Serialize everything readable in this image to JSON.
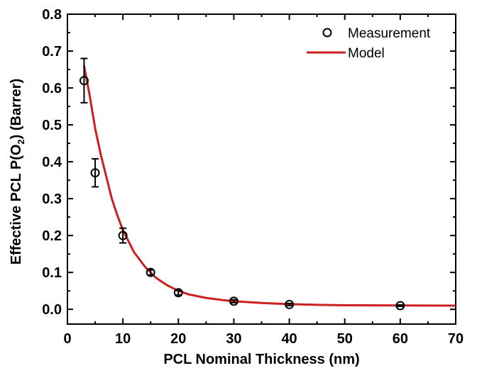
{
  "chart_data": {
    "type": "scatter",
    "xlabel": "PCL Nominal Thickness (nm)",
    "ylabel": {
      "pre": "Effective PCL P(O",
      "sub": "2",
      "post": ") (Barrer)"
    },
    "xlim": [
      0,
      70
    ],
    "ylim": [
      -0.04,
      0.8
    ],
    "x_ticks": [
      0,
      10,
      20,
      30,
      40,
      50,
      60,
      70
    ],
    "y_ticks": [
      0.0,
      0.1,
      0.2,
      0.3,
      0.4,
      0.5,
      0.6,
      0.7,
      0.8
    ],
    "x_tick_labels": [
      "0",
      "10",
      "20",
      "30",
      "40",
      "50",
      "60",
      "70"
    ],
    "y_tick_labels": [
      "0.0",
      "0.1",
      "0.2",
      "0.3",
      "0.4",
      "0.5",
      "0.6",
      "0.7",
      "0.8"
    ],
    "grid": false,
    "legend_position": "top-right",
    "series": [
      {
        "name": "Measurement",
        "kind": "scatter-errorbar",
        "marker": "open-circle",
        "color": "#000000",
        "points": [
          {
            "x": 3,
            "y": 0.62,
            "err": 0.06
          },
          {
            "x": 5,
            "y": 0.37,
            "err": 0.038
          },
          {
            "x": 10,
            "y": 0.2,
            "err": 0.02
          },
          {
            "x": 15,
            "y": 0.1,
            "err": 0.007
          },
          {
            "x": 20,
            "y": 0.045,
            "err": 0.006
          },
          {
            "x": 30,
            "y": 0.022,
            "err": 0.004
          },
          {
            "x": 40,
            "y": 0.013,
            "err": 0.003
          },
          {
            "x": 60,
            "y": 0.01,
            "err": 0.002
          }
        ]
      },
      {
        "name": "Model",
        "kind": "line",
        "color": "#cc1f1f",
        "points": [
          {
            "x": 3,
            "y": 0.66
          },
          {
            "x": 4,
            "y": 0.58
          },
          {
            "x": 5,
            "y": 0.49
          },
          {
            "x": 6,
            "y": 0.42
          },
          {
            "x": 7,
            "y": 0.36
          },
          {
            "x": 8,
            "y": 0.3
          },
          {
            "x": 9,
            "y": 0.255
          },
          {
            "x": 10,
            "y": 0.215
          },
          {
            "x": 12,
            "y": 0.155
          },
          {
            "x": 14,
            "y": 0.115
          },
          {
            "x": 16,
            "y": 0.085
          },
          {
            "x": 18,
            "y": 0.065
          },
          {
            "x": 20,
            "y": 0.05
          },
          {
            "x": 22,
            "y": 0.04
          },
          {
            "x": 25,
            "y": 0.031
          },
          {
            "x": 28,
            "y": 0.025
          },
          {
            "x": 30,
            "y": 0.022
          },
          {
            "x": 35,
            "y": 0.017
          },
          {
            "x": 40,
            "y": 0.014
          },
          {
            "x": 45,
            "y": 0.012
          },
          {
            "x": 50,
            "y": 0.011
          },
          {
            "x": 60,
            "y": 0.0105
          },
          {
            "x": 70,
            "y": 0.01
          }
        ]
      }
    ]
  }
}
